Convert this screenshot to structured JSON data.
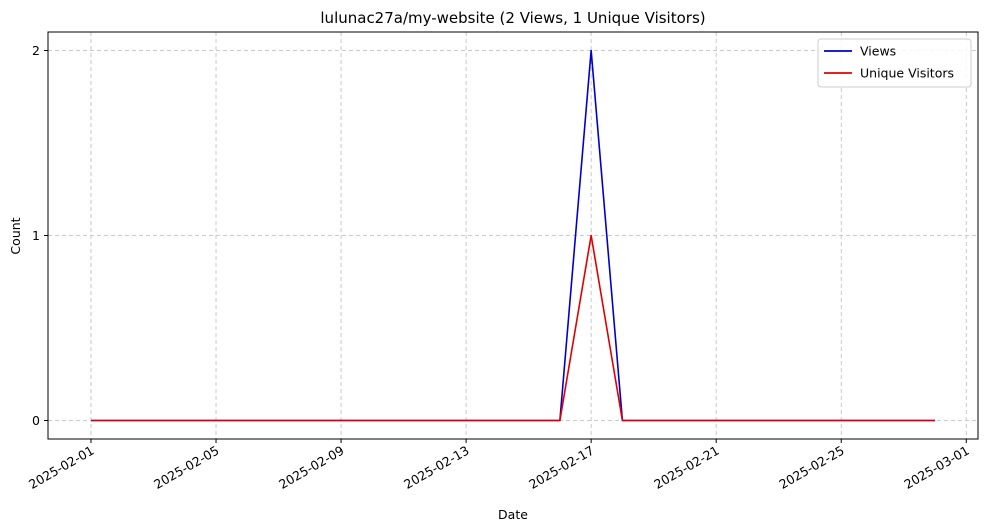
{
  "chart_data": {
    "type": "line",
    "title": "lulunac27a/my-website (2 Views, 1 Unique Visitors)",
    "xlabel": "Date",
    "ylabel": "Count",
    "x": [
      "2025-02-01",
      "2025-02-02",
      "2025-02-03",
      "2025-02-04",
      "2025-02-05",
      "2025-02-06",
      "2025-02-07",
      "2025-02-08",
      "2025-02-09",
      "2025-02-10",
      "2025-02-11",
      "2025-02-12",
      "2025-02-13",
      "2025-02-14",
      "2025-02-15",
      "2025-02-16",
      "2025-02-17",
      "2025-02-18",
      "2025-02-19",
      "2025-02-20",
      "2025-02-21",
      "2025-02-22",
      "2025-02-23",
      "2025-02-24",
      "2025-02-25",
      "2025-02-26",
      "2025-02-27",
      "2025-02-28"
    ],
    "series": [
      {
        "name": "Views",
        "color": "#0000cc",
        "values": [
          0,
          0,
          0,
          0,
          0,
          0,
          0,
          0,
          0,
          0,
          0,
          0,
          0,
          0,
          0,
          0,
          2,
          0,
          0,
          0,
          0,
          0,
          0,
          0,
          0,
          0,
          0,
          0
        ]
      },
      {
        "name": "Unique Visitors",
        "color": "#e00000",
        "values": [
          0,
          0,
          0,
          0,
          0,
          0,
          0,
          0,
          0,
          0,
          0,
          0,
          0,
          0,
          0,
          0,
          1,
          0,
          0,
          0,
          0,
          0,
          0,
          0,
          0,
          0,
          0,
          0
        ]
      }
    ],
    "xticks": [
      "2025-02-01",
      "2025-02-05",
      "2025-02-09",
      "2025-02-13",
      "2025-02-17",
      "2025-02-21",
      "2025-02-25",
      "2025-03-01"
    ],
    "yticks": [
      0,
      1,
      2
    ],
    "ylim": [
      -0.1,
      2.1
    ],
    "xlim": [
      "2025-01-30T15:00:00",
      "2025-03-01T09:00:00"
    ],
    "grid": true,
    "legend_position": "top-right"
  }
}
